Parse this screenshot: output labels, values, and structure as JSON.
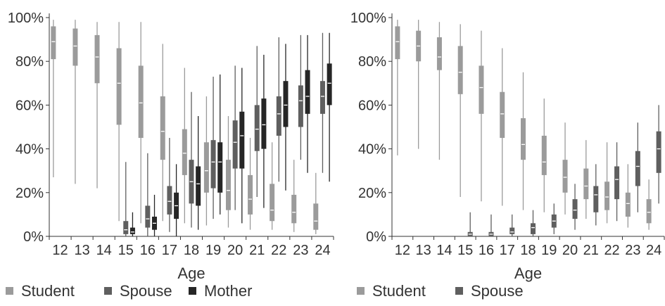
{
  "colors": {
    "Student": "#9b9b9b",
    "Spouse": "#5f5f5f",
    "Mother": "#262626",
    "axis": "#333333",
    "median": "#ffffff"
  },
  "chart_data": [
    {
      "type": "box",
      "xlabel": "Age",
      "ylabel": "",
      "ylim": [
        0,
        1
      ],
      "y_ticks": [
        "0%",
        "20%",
        "40%",
        "60%",
        "80%",
        "100%"
      ],
      "y_tick_values": [
        0,
        0.2,
        0.4,
        0.6,
        0.8,
        1.0
      ],
      "categories": [
        "12",
        "13",
        "14",
        "15",
        "16",
        "17",
        "18",
        "19",
        "20",
        "21",
        "22",
        "23",
        "24"
      ],
      "legend_position": "bottom-left",
      "legend": [
        "Student",
        "Spouse",
        "Mother"
      ],
      "series": [
        {
          "name": "Student",
          "boxes": [
            {
              "x": "12",
              "min": 0.27,
              "q1": 0.81,
              "median": 0.89,
              "q3": 0.96,
              "max": 0.99
            },
            {
              "x": "13",
              "min": 0.24,
              "q1": 0.78,
              "median": 0.87,
              "q3": 0.95,
              "max": 0.99
            },
            {
              "x": "14",
              "min": 0.22,
              "q1": 0.7,
              "median": 0.82,
              "q3": 0.92,
              "max": 0.98
            },
            {
              "x": "15",
              "min": 0.07,
              "q1": 0.51,
              "median": 0.7,
              "q3": 0.86,
              "max": 0.98
            },
            {
              "x": "16",
              "min": 0.06,
              "q1": 0.45,
              "median": 0.61,
              "q3": 0.78,
              "max": 0.98
            },
            {
              "x": "17",
              "min": 0.07,
              "q1": 0.35,
              "median": 0.48,
              "q3": 0.64,
              "max": 0.88
            },
            {
              "x": "18",
              "min": 0.06,
              "q1": 0.28,
              "median": 0.38,
              "q3": 0.49,
              "max": 0.77
            },
            {
              "x": "19",
              "min": 0.05,
              "q1": 0.2,
              "median": 0.3,
              "q3": 0.43,
              "max": 0.64
            },
            {
              "x": "20",
              "min": 0.04,
              "q1": 0.12,
              "median": 0.21,
              "q3": 0.35,
              "max": 0.55
            },
            {
              "x": "21",
              "min": 0.03,
              "q1": 0.1,
              "median": 0.17,
              "q3": 0.28,
              "max": 0.45
            },
            {
              "x": "22",
              "min": 0.03,
              "q1": 0.07,
              "median": 0.12,
              "q3": 0.24,
              "max": 0.43
            },
            {
              "x": "23",
              "min": 0.02,
              "q1": 0.06,
              "median": 0.11,
              "q3": 0.19,
              "max": 0.35
            },
            {
              "x": "24",
              "min": 0.01,
              "q1": 0.03,
              "median": 0.07,
              "q3": 0.15,
              "max": 0.29
            }
          ]
        },
        {
          "name": "Spouse",
          "boxes": [
            {
              "x": "15",
              "min": 0.0,
              "q1": 0.01,
              "median": 0.03,
              "q3": 0.07,
              "max": 0.34
            },
            {
              "x": "16",
              "min": 0.0,
              "q1": 0.04,
              "median": 0.08,
              "q3": 0.14,
              "max": 0.38
            },
            {
              "x": "17",
              "min": 0.02,
              "q1": 0.1,
              "median": 0.16,
              "q3": 0.23,
              "max": 0.45
            },
            {
              "x": "18",
              "min": 0.04,
              "q1": 0.15,
              "median": 0.25,
              "q3": 0.35,
              "max": 0.66
            },
            {
              "x": "19",
              "min": 0.08,
              "q1": 0.22,
              "median": 0.34,
              "q3": 0.44,
              "max": 0.73
            },
            {
              "x": "20",
              "min": 0.12,
              "q1": 0.31,
              "median": 0.43,
              "q3": 0.53,
              "max": 0.78
            },
            {
              "x": "21",
              "min": 0.18,
              "q1": 0.39,
              "median": 0.49,
              "q3": 0.6,
              "max": 0.87
            },
            {
              "x": "22",
              "min": 0.25,
              "q1": 0.46,
              "median": 0.56,
              "q3": 0.64,
              "max": 0.91
            },
            {
              "x": "23",
              "min": 0.35,
              "q1": 0.5,
              "median": 0.62,
              "q3": 0.69,
              "max": 0.92
            },
            {
              "x": "24",
              "min": 0.29,
              "q1": 0.56,
              "median": 0.64,
              "q3": 0.71,
              "max": 0.93
            }
          ]
        },
        {
          "name": "Mother",
          "boxes": [
            {
              "x": "15",
              "min": 0.0,
              "q1": 0.01,
              "median": 0.02,
              "q3": 0.04,
              "max": 0.11
            },
            {
              "x": "16",
              "min": 0.0,
              "q1": 0.03,
              "median": 0.06,
              "q3": 0.09,
              "max": 0.19
            },
            {
              "x": "17",
              "min": 0.0,
              "q1": 0.08,
              "median": 0.14,
              "q3": 0.2,
              "max": 0.33
            },
            {
              "x": "18",
              "min": 0.03,
              "q1": 0.14,
              "median": 0.24,
              "q3": 0.32,
              "max": 0.55
            },
            {
              "x": "19",
              "min": 0.1,
              "q1": 0.2,
              "median": 0.34,
              "q3": 0.43,
              "max": 0.74
            },
            {
              "x": "20",
              "min": 0.06,
              "q1": 0.31,
              "median": 0.46,
              "q3": 0.57,
              "max": 0.77
            },
            {
              "x": "21",
              "min": 0.13,
              "q1": 0.4,
              "median": 0.51,
              "q3": 0.63,
              "max": 0.83
            },
            {
              "x": "22",
              "min": 0.21,
              "q1": 0.5,
              "median": 0.6,
              "q3": 0.71,
              "max": 0.88
            },
            {
              "x": "23",
              "min": 0.29,
              "q1": 0.56,
              "median": 0.64,
              "q3": 0.76,
              "max": 0.92
            },
            {
              "x": "24",
              "min": 0.25,
              "q1": 0.6,
              "median": 0.7,
              "q3": 0.79,
              "max": 0.93
            }
          ]
        }
      ]
    },
    {
      "type": "box",
      "xlabel": "Age",
      "ylabel": "",
      "ylim": [
        0,
        1
      ],
      "y_ticks": [
        "0%",
        "20%",
        "40%",
        "60%",
        "80%",
        "100%"
      ],
      "y_tick_values": [
        0,
        0.2,
        0.4,
        0.6,
        0.8,
        1.0
      ],
      "categories": [
        "12",
        "13",
        "14",
        "15",
        "16",
        "17",
        "18",
        "19",
        "20",
        "21",
        "22",
        "23",
        "24"
      ],
      "legend_position": "bottom-left",
      "legend": [
        "Student",
        "Spouse"
      ],
      "series": [
        {
          "name": "Student",
          "boxes": [
            {
              "x": "12",
              "min": 0.37,
              "q1": 0.81,
              "median": 0.89,
              "q3": 0.96,
              "max": 0.99
            },
            {
              "x": "13",
              "min": 0.4,
              "q1": 0.8,
              "median": 0.87,
              "q3": 0.94,
              "max": 0.99
            },
            {
              "x": "14",
              "min": 0.35,
              "q1": 0.76,
              "median": 0.82,
              "q3": 0.91,
              "max": 0.98
            },
            {
              "x": "15",
              "min": 0.18,
              "q1": 0.65,
              "median": 0.75,
              "q3": 0.87,
              "max": 0.97
            },
            {
              "x": "16",
              "min": 0.16,
              "q1": 0.56,
              "median": 0.68,
              "q3": 0.78,
              "max": 0.94
            },
            {
              "x": "17",
              "min": 0.14,
              "q1": 0.45,
              "median": 0.56,
              "q3": 0.66,
              "max": 0.86
            },
            {
              "x": "18",
              "min": 0.12,
              "q1": 0.35,
              "median": 0.42,
              "q3": 0.54,
              "max": 0.75
            },
            {
              "x": "19",
              "min": 0.11,
              "q1": 0.28,
              "median": 0.34,
              "q3": 0.46,
              "max": 0.63
            },
            {
              "x": "20",
              "min": 0.1,
              "q1": 0.2,
              "median": 0.27,
              "q3": 0.35,
              "max": 0.52
            },
            {
              "x": "21",
              "min": 0.08,
              "q1": 0.17,
              "median": 0.23,
              "q3": 0.31,
              "max": 0.44
            },
            {
              "x": "22",
              "min": 0.06,
              "q1": 0.12,
              "median": 0.18,
              "q3": 0.25,
              "max": 0.43
            },
            {
              "x": "23",
              "min": 0.04,
              "q1": 0.09,
              "median": 0.15,
              "q3": 0.2,
              "max": 0.33
            },
            {
              "x": "24",
              "min": 0.03,
              "q1": 0.06,
              "median": 0.11,
              "q3": 0.17,
              "max": 0.26
            }
          ]
        },
        {
          "name": "Spouse",
          "boxes": [
            {
              "x": "15",
              "min": 0.0,
              "q1": 0.0,
              "median": 0.01,
              "q3": 0.02,
              "max": 0.11
            },
            {
              "x": "16",
              "min": 0.0,
              "q1": 0.0,
              "median": 0.01,
              "q3": 0.02,
              "max": 0.1
            },
            {
              "x": "17",
              "min": 0.0,
              "q1": 0.01,
              "median": 0.02,
              "q3": 0.04,
              "max": 0.1
            },
            {
              "x": "18",
              "min": 0.0,
              "q1": 0.01,
              "median": 0.04,
              "q3": 0.06,
              "max": 0.12
            },
            {
              "x": "19",
              "min": 0.01,
              "q1": 0.04,
              "median": 0.07,
              "q3": 0.1,
              "max": 0.15
            },
            {
              "x": "20",
              "min": 0.03,
              "q1": 0.08,
              "median": 0.12,
              "q3": 0.17,
              "max": 0.24
            },
            {
              "x": "21",
              "min": 0.05,
              "q1": 0.11,
              "median": 0.19,
              "q3": 0.23,
              "max": 0.33
            },
            {
              "x": "22",
              "min": 0.07,
              "q1": 0.17,
              "median": 0.26,
              "q3": 0.32,
              "max": 0.43
            },
            {
              "x": "23",
              "min": 0.11,
              "q1": 0.23,
              "median": 0.32,
              "q3": 0.39,
              "max": 0.52
            },
            {
              "x": "24",
              "min": 0.15,
              "q1": 0.29,
              "median": 0.4,
              "q3": 0.48,
              "max": 0.6
            }
          ]
        }
      ]
    }
  ]
}
